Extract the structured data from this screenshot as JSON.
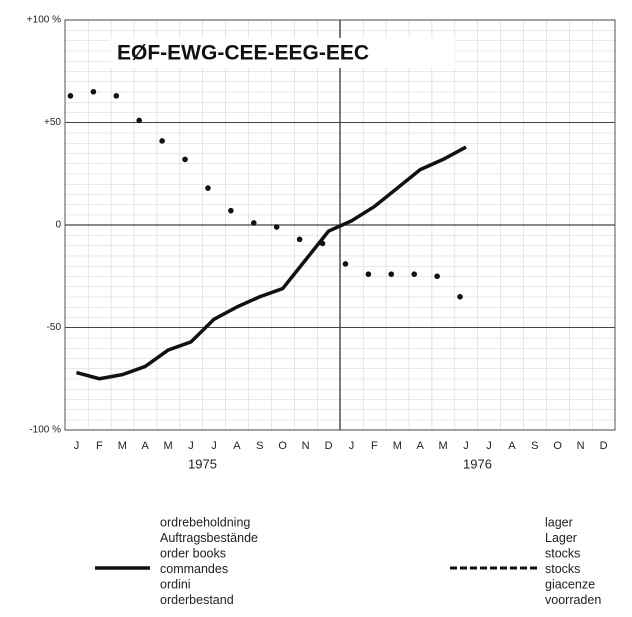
{
  "chart_data": {
    "type": "line",
    "title": "EØF-EWG-CEE-EEG-EEC",
    "categories": [
      "J",
      "F",
      "M",
      "A",
      "M",
      "J",
      "J",
      "A",
      "S",
      "O",
      "N",
      "D",
      "J",
      "F",
      "M",
      "A",
      "M",
      "J",
      "J",
      "A",
      "S",
      "O",
      "N",
      "D"
    ],
    "years": [
      "1975",
      "1976"
    ],
    "ylim": [
      -100,
      100
    ],
    "yticks": [
      {
        "value": -100,
        "label": "-100 %"
      },
      {
        "value": -50,
        "label": "-50"
      },
      0,
      {
        "value": 50,
        "label": "+50"
      },
      {
        "value": 100,
        "label": "+100 %"
      }
    ],
    "series": [
      {
        "names": [
          "ordrebeholdning",
          "Auftragsbestände",
          "order books",
          "commandes",
          "ordini",
          "orderbestand"
        ],
        "style": "solid",
        "color": "#111111",
        "values": [
          -72,
          -75,
          -73,
          -69,
          -61,
          -57,
          -46,
          -40,
          -35,
          -31,
          -17,
          -3,
          2,
          9,
          18,
          27,
          32,
          38,
          null,
          null,
          null,
          null,
          null,
          null
        ]
      },
      {
        "names": [
          "lager",
          "Lager",
          "stocks",
          "stocks",
          "giacenze",
          "voorraden"
        ],
        "style": "dotted",
        "color": "#111111",
        "values": [
          63,
          65,
          63,
          51,
          41,
          32,
          18,
          7,
          1,
          -1,
          -7,
          -9,
          -19,
          -24,
          -24,
          -24,
          -25,
          -35,
          null,
          null,
          null,
          null,
          null,
          null
        ]
      }
    ]
  }
}
